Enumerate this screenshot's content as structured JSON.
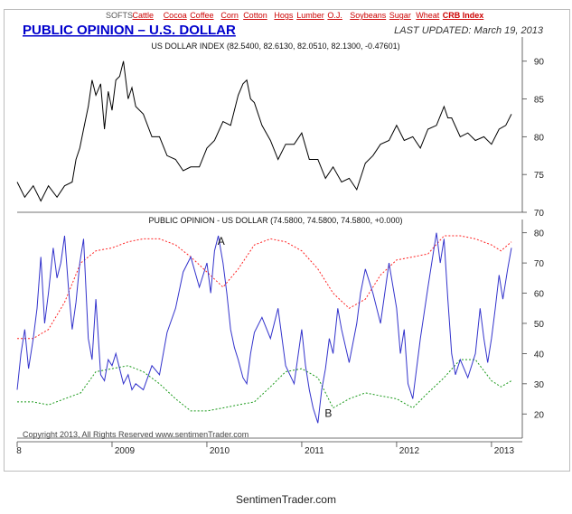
{
  "nav": {
    "links": [
      "SOFTS",
      "Cattle",
      "Cocoa",
      "Coffee",
      "Corn",
      "Cotton",
      "Hogs",
      "Lumber",
      "O.J.",
      "Soybeans",
      "Sugar",
      "Wheat",
      "CRB Index"
    ]
  },
  "header": {
    "title": "PUBLIC OPINION – U.S. DOLLAR",
    "updated": "LAST UPDATED:   March 19, 2013"
  },
  "copyright": "Copyright 2013, All Rights Reserved   www.sentimenTrader.com",
  "footer": "SentimenTrader.com",
  "colors": {
    "accent": "#0000cc",
    "price": "#000000",
    "opinion": "#3333cc",
    "upper": "#ff2222",
    "lower": "#1a9a1a"
  },
  "chart_data": [
    {
      "type": "line",
      "title": "US DOLLAR INDEX (82.5400, 82.6130, 82.0510, 82.1300, -0.47601)",
      "x_ticks": [
        "8",
        "2009",
        "2010",
        "2011",
        "2012",
        "2013"
      ],
      "x_range": [
        2008.0,
        2013.22
      ],
      "y_ticks": [
        70,
        75,
        80,
        85,
        90
      ],
      "ylim": [
        70,
        92
      ],
      "series": [
        {
          "x": [
            2008.0,
            2008.08,
            2008.17,
            2008.25,
            2008.33,
            2008.42,
            2008.5,
            2008.58,
            2008.62,
            2008.66,
            2008.7,
            2008.75,
            2008.79,
            2008.83,
            2008.88,
            2008.92,
            2008.96,
            2009.0,
            2009.04,
            2009.08,
            2009.12,
            2009.17,
            2009.21,
            2009.25,
            2009.33,
            2009.42,
            2009.5,
            2009.58,
            2009.67,
            2009.75,
            2009.83,
            2009.92,
            2010.0,
            2010.08,
            2010.17,
            2010.25,
            2010.33,
            2010.38,
            2010.42,
            2010.46,
            2010.5,
            2010.58,
            2010.67,
            2010.75,
            2010.83,
            2010.92,
            2011.0,
            2011.08,
            2011.17,
            2011.25,
            2011.33,
            2011.42,
            2011.5,
            2011.58,
            2011.67,
            2011.75,
            2011.83,
            2011.92,
            2012.0,
            2012.08,
            2012.17,
            2012.25,
            2012.33,
            2012.42,
            2012.5,
            2012.54,
            2012.58,
            2012.67,
            2012.75,
            2012.83,
            2012.92,
            2013.0,
            2013.08,
            2013.15,
            2013.21
          ],
          "y": [
            73.5,
            72.5,
            73.0,
            72.0,
            73.0,
            72.5,
            73.0,
            74.5,
            76.5,
            79.0,
            80.5,
            84.5,
            87.0,
            86.0,
            86.5,
            81.5,
            85.5,
            84.0,
            87.0,
            88.5,
            89.5,
            85.5,
            86.0,
            84.5,
            82.5,
            80.5,
            79.5,
            78.0,
            76.5,
            76.0,
            75.5,
            76.5,
            78.0,
            80.0,
            81.5,
            82.0,
            85.0,
            87.5,
            87.0,
            85.5,
            84.0,
            82.0,
            79.0,
            77.5,
            78.5,
            79.5,
            80.0,
            77.5,
            76.5,
            75.0,
            75.5,
            74.5,
            74.0,
            73.5,
            76.0,
            78.0,
            78.5,
            80.0,
            81.0,
            80.0,
            79.5,
            79.0,
            80.5,
            82.0,
            83.5,
            83.0,
            82.0,
            80.5,
            80.0,
            80.0,
            79.5,
            79.5,
            80.5,
            82.0,
            82.5
          ]
        }
      ]
    },
    {
      "type": "line",
      "title": "PUBLIC OPINION - US DOLLAR (74.5800, 74.5800, 74.5800, +0.000)",
      "x_ticks": [
        "8",
        "2009",
        "2010",
        "2011",
        "2012",
        "2013"
      ],
      "x_range": [
        2008.0,
        2013.22
      ],
      "y_ticks": [
        20,
        30,
        40,
        50,
        60,
        70,
        80
      ],
      "ylim": [
        12,
        82
      ],
      "annotations": [
        {
          "text": "A",
          "x": 2010.15,
          "y": 76
        },
        {
          "text": "B",
          "x": 2011.28,
          "y": 19
        }
      ],
      "series": [
        {
          "x": [
            2008.0,
            2008.04,
            2008.08,
            2008.12,
            2008.17,
            2008.21,
            2008.25,
            2008.29,
            2008.33,
            2008.38,
            2008.42,
            2008.46,
            2008.5,
            2008.54,
            2008.58,
            2008.62,
            2008.66,
            2008.7,
            2008.75,
            2008.79,
            2008.83,
            2008.88,
            2008.92,
            2008.96,
            2009.0,
            2009.04,
            2009.08,
            2009.12,
            2009.17,
            2009.21,
            2009.25,
            2009.33,
            2009.42,
            2009.5,
            2009.58,
            2009.67,
            2009.75,
            2009.83,
            2009.92,
            2010.0,
            2010.04,
            2010.08,
            2010.12,
            2010.17,
            2010.21,
            2010.25,
            2010.29,
            2010.33,
            2010.38,
            2010.42,
            2010.46,
            2010.5,
            2010.58,
            2010.67,
            2010.75,
            2010.83,
            2010.92,
            2011.0,
            2011.04,
            2011.08,
            2011.12,
            2011.17,
            2011.21,
            2011.25,
            2011.29,
            2011.33,
            2011.38,
            2011.42,
            2011.5,
            2011.58,
            2011.62,
            2011.67,
            2011.75,
            2011.83,
            2011.92,
            2012.0,
            2012.04,
            2012.08,
            2012.12,
            2012.17,
            2012.21,
            2012.25,
            2012.33,
            2012.38,
            2012.42,
            2012.46,
            2012.5,
            2012.54,
            2012.58,
            2012.62,
            2012.67,
            2012.75,
            2012.83,
            2012.88,
            2012.92,
            2012.96,
            2013.0,
            2013.04,
            2013.08,
            2013.12,
            2013.17,
            2013.21
          ],
          "y": [
            28,
            40,
            48,
            35,
            45,
            55,
            72,
            50,
            60,
            75,
            65,
            70,
            79,
            62,
            48,
            57,
            70,
            78,
            45,
            38,
            58,
            33,
            31,
            38,
            36,
            40,
            35,
            30,
            33,
            28,
            30,
            28,
            36,
            33,
            47,
            55,
            67,
            72,
            62,
            70,
            60,
            74,
            79,
            70,
            60,
            48,
            42,
            38,
            32,
            30,
            40,
            47,
            52,
            45,
            55,
            36,
            30,
            48,
            36,
            28,
            22,
            17,
            28,
            35,
            45,
            40,
            55,
            48,
            37,
            50,
            60,
            68,
            60,
            50,
            70,
            55,
            40,
            48,
            30,
            25,
            35,
            45,
            62,
            72,
            80,
            70,
            78,
            58,
            40,
            33,
            38,
            32,
            40,
            55,
            45,
            37,
            45,
            55,
            66,
            58,
            68,
            75
          ]
        },
        {
          "x": [
            2008.0,
            2008.17,
            2008.33,
            2008.5,
            2008.67,
            2008.83,
            2009.0,
            2009.17,
            2009.33,
            2009.5,
            2009.67,
            2009.83,
            2010.0,
            2010.17,
            2010.33,
            2010.5,
            2010.67,
            2010.83,
            2011.0,
            2011.17,
            2011.33,
            2011.5,
            2011.67,
            2011.83,
            2012.0,
            2012.17,
            2012.33,
            2012.5,
            2012.67,
            2012.83,
            2013.0,
            2013.1,
            2013.21
          ],
          "y": [
            45,
            45,
            48,
            57,
            70,
            74,
            75,
            77,
            78,
            78,
            76,
            72,
            67,
            62,
            68,
            76,
            78,
            77,
            74,
            68,
            60,
            55,
            58,
            66,
            71,
            72,
            73,
            79,
            79,
            78,
            76,
            74,
            77
          ]
        },
        {
          "x": [
            2008.0,
            2008.17,
            2008.33,
            2008.5,
            2008.67,
            2008.83,
            2009.0,
            2009.17,
            2009.33,
            2009.5,
            2009.67,
            2009.83,
            2010.0,
            2010.17,
            2010.33,
            2010.5,
            2010.67,
            2010.83,
            2011.0,
            2011.17,
            2011.33,
            2011.5,
            2011.67,
            2011.83,
            2012.0,
            2012.17,
            2012.33,
            2012.5,
            2012.67,
            2012.83,
            2013.0,
            2013.1,
            2013.21
          ],
          "y": [
            24,
            24,
            23,
            25,
            27,
            34,
            35,
            36,
            34,
            30,
            25,
            21,
            21,
            22,
            23,
            24,
            29,
            34,
            35,
            32,
            22,
            25,
            27,
            26,
            25,
            22,
            27,
            32,
            38,
            38,
            31,
            29,
            31
          ]
        }
      ]
    }
  ]
}
